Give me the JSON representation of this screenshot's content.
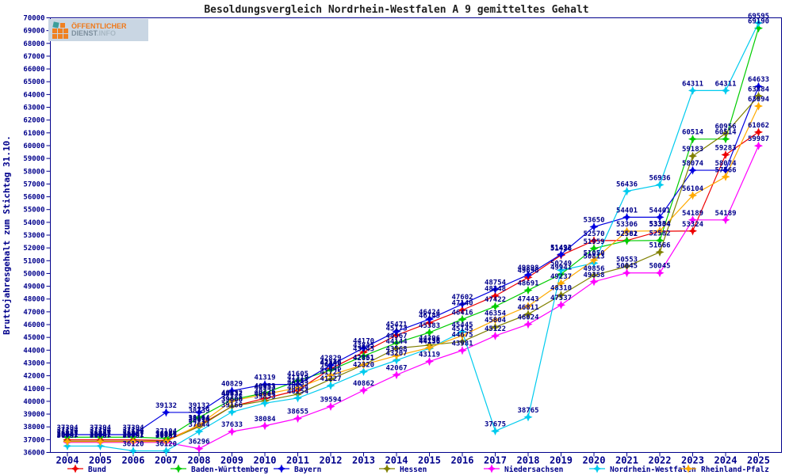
{
  "page": {
    "title": "Besoldungsvergleich Nordrhein-Westfalen A 9 gemitteltes Gehalt"
  },
  "logo": {
    "line1": "ÖFFENTLICHER",
    "line2_strong": "DIENST",
    "line2_light": ".INFO"
  },
  "chart_data": {
    "type": "line",
    "title": "Besoldungsvergleich Nordrhein-Westfalen A 9 gemitteltes Gehalt",
    "ylabel": "Bruttojahresgehalt zum Stichtag 31.10.",
    "xlabel": "",
    "ylim": [
      36000,
      70000
    ],
    "ytick_step": 1000,
    "grid": false,
    "legend_position": "bottom",
    "axis_color": "#00008b",
    "label_color": "#00008b",
    "x": [
      2004,
      2005,
      2006,
      2007,
      2008,
      2009,
      2010,
      2011,
      2012,
      2013,
      2014,
      2015,
      2016,
      2017,
      2018,
      2019,
      2020,
      2021,
      2022,
      2023,
      2024,
      2025
    ],
    "series": [
      {
        "name": "Bund",
        "color": "#ee0000",
        "values": [
          36987,
          36987,
          36987,
          36944,
          38104,
          39600,
          40226,
          40853,
          42546,
          43845,
          45173,
          46145,
          47140,
          48248,
          49696,
          51426,
          52570,
          52581,
          53304,
          53324,
          59283,
          61062
        ]
      },
      {
        "name": "Baden-Württemberg",
        "color": "#00cc00",
        "values": [
          37194,
          37194,
          37194,
          37104,
          38739,
          40132,
          40653,
          41605,
          42446,
          43545,
          44567,
          45383,
          46416,
          47422,
          48691,
          49941,
          51959,
          52562,
          52582,
          60514,
          60514,
          69190
        ]
      },
      {
        "name": "Bayern",
        "color": "#0000e0",
        "values": [
          37394,
          37394,
          37394,
          39132,
          39132,
          40829,
          41319,
          41319,
          42829,
          44170,
          45471,
          46424,
          47602,
          48754,
          49898,
          51492,
          53650,
          54401,
          54401,
          58074,
          58074,
          64633
        ]
      },
      {
        "name": "Hessen",
        "color": "#808000",
        "values": [
          36887,
          36887,
          36887,
          36887,
          38014,
          39608,
          40044,
          40554,
          41725,
          42851,
          44144,
          44396,
          44675,
          45804,
          46811,
          48310,
          49856,
          50553,
          51666,
          59183,
          60956,
          63884
        ]
      },
      {
        "name": "Niedersachsen",
        "color": "#ff00ff",
        "values": [
          36787,
          36787,
          36787,
          36787,
          36296,
          37633,
          38084,
          38655,
          39594,
          40862,
          42067,
          43119,
          43981,
          45122,
          46024,
          47537,
          49358,
          50045,
          50045,
          54189,
          54189,
          59987
        ]
      },
      {
        "name": "Nordrhein-Westfalen",
        "color": "#00cbee",
        "values": [
          36500,
          36500,
          36120,
          36120,
          37644,
          39166,
          39853,
          40254,
          41227,
          42320,
          43207,
          44136,
          45445,
          37675,
          38765,
          50249,
          50813,
          56436,
          56936,
          64311,
          64311,
          69595
        ],
        "hide_labels": [
          0,
          1
        ]
      },
      {
        "name": "Rheinland-Pfalz",
        "color": "#ffaa00",
        "values": [
          36841,
          36841,
          36841,
          36841,
          38164,
          40032,
          40553,
          41053,
          42046,
          42861,
          43568,
          44196,
          45145,
          46354,
          47443,
          49237,
          51050,
          53306,
          53334,
          56104,
          57566,
          63094
        ]
      }
    ]
  }
}
